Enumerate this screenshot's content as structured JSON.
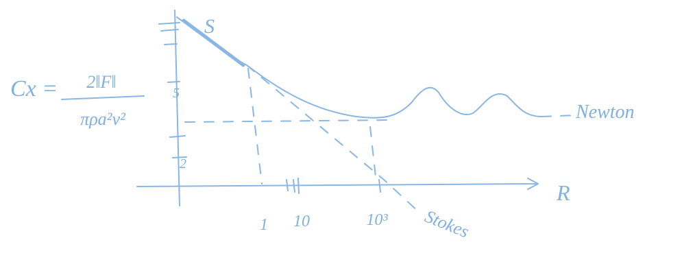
{
  "formula": {
    "lhs": "Cx =",
    "numerator": "2‖F‖",
    "denominator": "πρa²v²"
  },
  "curve_label": "S",
  "asymptote_label": "Newton",
  "line_label": "Stokes",
  "x_axis": {
    "label": "R",
    "ticks": [
      "1",
      "10",
      "10³"
    ]
  },
  "y_axis": {
    "ticks": [
      "5",
      "2"
    ]
  }
}
